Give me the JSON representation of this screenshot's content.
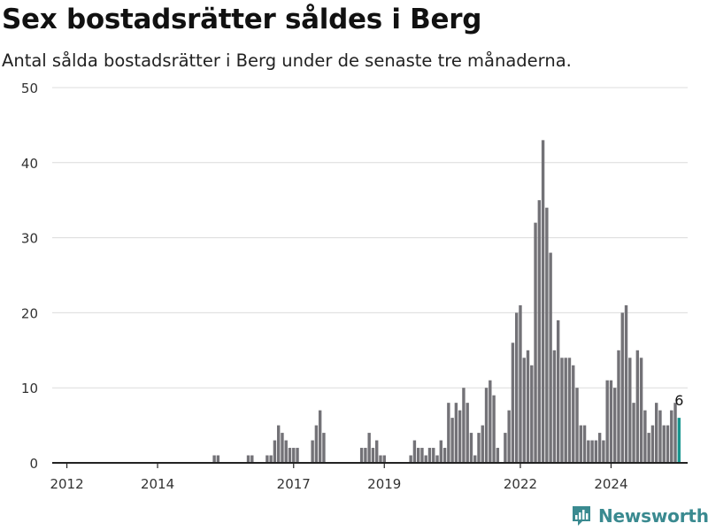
{
  "header": {
    "title": "Sex bostadsrätter såldes i Berg",
    "subtitle": "Antal sålda bostadsrätter i Berg under de senaste tre månaderna."
  },
  "logo": {
    "text": "Newsworthy",
    "icon": "newsworthy-logo-icon"
  },
  "colors": {
    "bar": "#737277",
    "highlight": "#17968f",
    "grid": "#dcdcdc",
    "axis": "#222222",
    "brand": "#3a8a90"
  },
  "chart_data": {
    "type": "bar",
    "title": "Sex bostadsrätter såldes i Berg",
    "subtitle": "Antal sålda bostadsrätter i Berg under de senaste tre månaderna.",
    "xlabel": "",
    "ylabel": "",
    "ylim": [
      0,
      50
    ],
    "yticks": [
      0,
      10,
      20,
      30,
      40,
      50
    ],
    "xticks": [
      "2012",
      "2014",
      "2017",
      "2019",
      "2022",
      "2024"
    ],
    "grid": true,
    "legend": "none",
    "annotation": {
      "label": "6",
      "target": "last bar"
    },
    "start_period": "2011-12",
    "frequency": "monthly",
    "values": [
      0,
      0,
      0,
      0,
      0,
      0,
      0,
      0,
      0,
      0,
      0,
      0,
      0,
      0,
      0,
      0,
      0,
      0,
      0,
      0,
      0,
      0,
      0,
      0,
      0,
      0,
      0,
      0,
      0,
      0,
      0,
      0,
      0,
      0,
      0,
      0,
      0,
      0,
      0,
      0,
      1,
      1,
      0,
      0,
      0,
      0,
      0,
      0,
      0,
      1,
      1,
      0,
      0,
      0,
      1,
      1,
      3,
      5,
      4,
      3,
      2,
      2,
      2,
      0,
      0,
      0,
      3,
      5,
      7,
      4,
      0,
      0,
      0,
      0,
      0,
      0,
      0,
      0,
      0,
      2,
      2,
      4,
      2,
      3,
      1,
      1,
      0,
      0,
      0,
      0,
      0,
      0,
      1,
      3,
      2,
      2,
      1,
      2,
      2,
      1,
      3,
      2,
      8,
      6,
      8,
      7,
      10,
      8,
      4,
      1,
      4,
      5,
      10,
      11,
      9,
      2,
      0,
      4,
      7,
      16,
      20,
      21,
      14,
      15,
      13,
      32,
      35,
      43,
      34,
      28,
      15,
      19,
      14,
      14,
      14,
      13,
      10,
      5,
      5,
      3,
      3,
      3,
      4,
      3,
      11,
      11,
      10,
      15,
      20,
      21,
      14,
      8,
      15,
      14,
      7,
      4,
      5,
      8,
      7,
      5,
      5,
      7,
      8,
      6
    ],
    "highlight_last": true
  }
}
